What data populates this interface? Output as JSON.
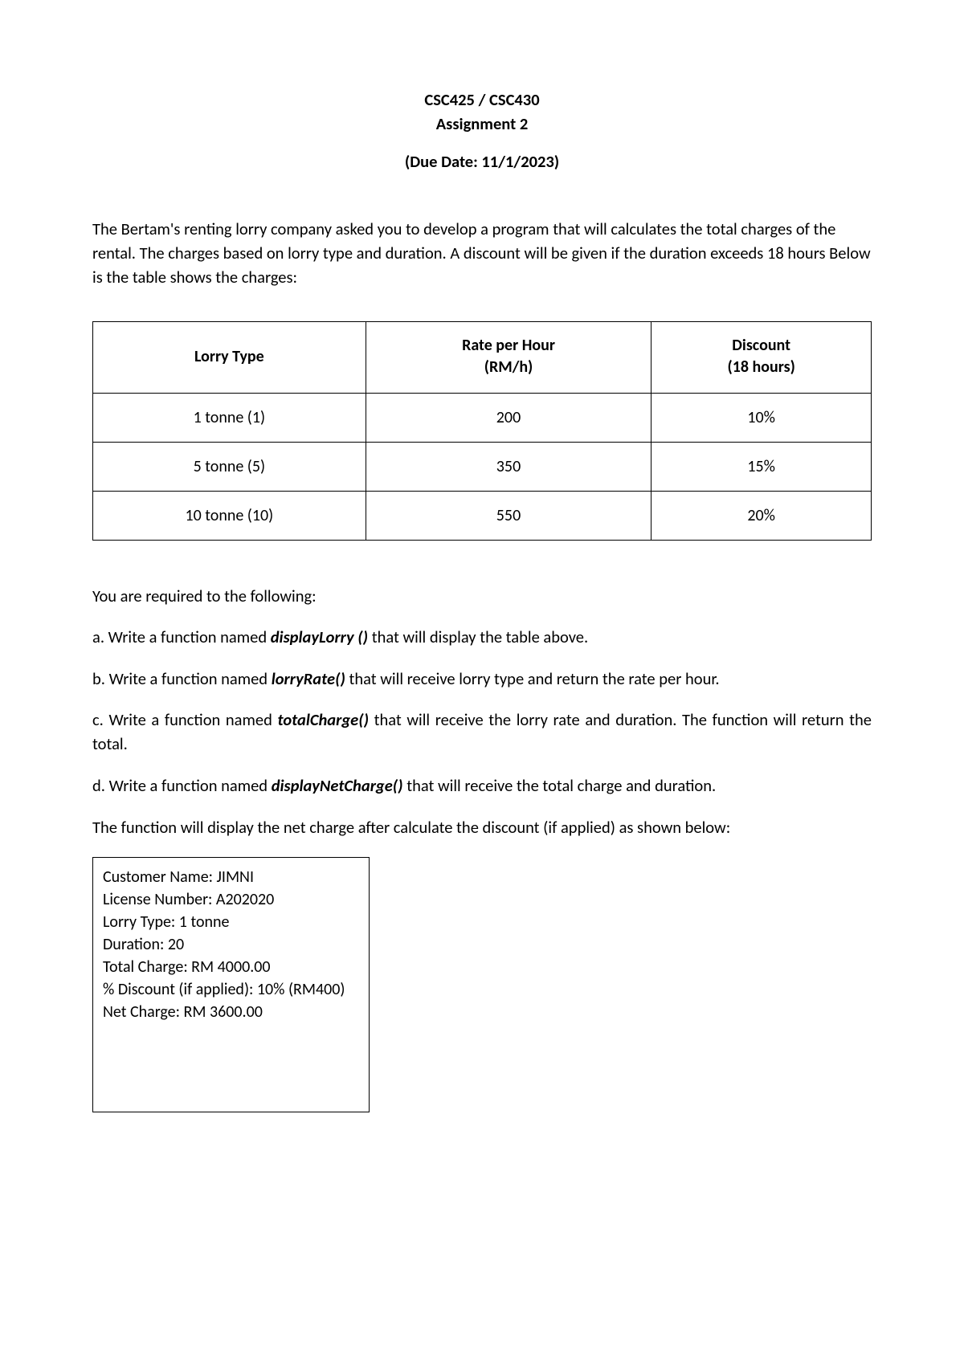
{
  "header": {
    "course": "CSC425 / CSC430",
    "assignment": "Assignment 2",
    "due_date": "(Due Date: 11/1/2023)"
  },
  "intro": "The Bertam's renting lorry company asked you to develop a program that will calculates the total charges of the rental. The charges based on lorry type and duration. A discount will be given if the duration exceeds 18 hours Below is the table shows the charges:",
  "table": {
    "columns": [
      "Lorry Type",
      "Rate per Hour (RM/h)",
      "Discount (18 hours)"
    ],
    "header_col1": "Lorry Type",
    "header_col2_line1": "Rate per Hour",
    "header_col2_line2": "(RM/h)",
    "header_col3_line1": "Discount",
    "header_col3_line2": "(18 hours)",
    "rows": [
      {
        "type": "1 tonne (1)",
        "rate": "200",
        "discount": "10%"
      },
      {
        "type": "5 tonne (5)",
        "rate": "350",
        "discount": "15%"
      },
      {
        "type": "10 tonne (10)",
        "rate": "550",
        "discount": "20%"
      }
    ],
    "border_color": "#000000",
    "background_color": "#ffffff",
    "font_size": 20,
    "col_widths": [
      "33.3%",
      "33.3%",
      "33.4%"
    ]
  },
  "required_intro": "You are required to the following:",
  "items": {
    "a_pre": "a. Write a function named ",
    "a_fn": "displayLorry ()",
    "a_post": " that will display the table above.",
    "b_pre": "b. Write a function named ",
    "b_fn": "lorryRate()",
    "b_post": " that will receive lorry type and return the rate per hour.",
    "c_pre": "c. Write a function named ",
    "c_fn": "totalCharge()",
    "c_post": " that will receive the lorry rate and duration. The function will return the total.",
    "d_pre": "d. Write a function named ",
    "d_fn": "displayNetCharge()",
    "d_post": " that will receive the total charge and duration.",
    "result_text": "The function will display the net charge after calculate the discount (if applied) as shown below:"
  },
  "output": {
    "customer_name": "Customer Name: JIMNI",
    "license": "License Number: A202020",
    "lorry_type": "Lorry Type: 1 tonne",
    "duration": "Duration: 20",
    "total_charge": "Total Charge: RM 4000.00",
    "discount": "% Discount (if applied): 10% (RM400)",
    "net_charge": "Net Charge: RM 3600.00"
  },
  "styling": {
    "page_background": "#ffffff",
    "text_color": "#000000",
    "body_font_size": 20.5,
    "header_font_weight": "bold",
    "function_name_style": "bold-italic"
  }
}
